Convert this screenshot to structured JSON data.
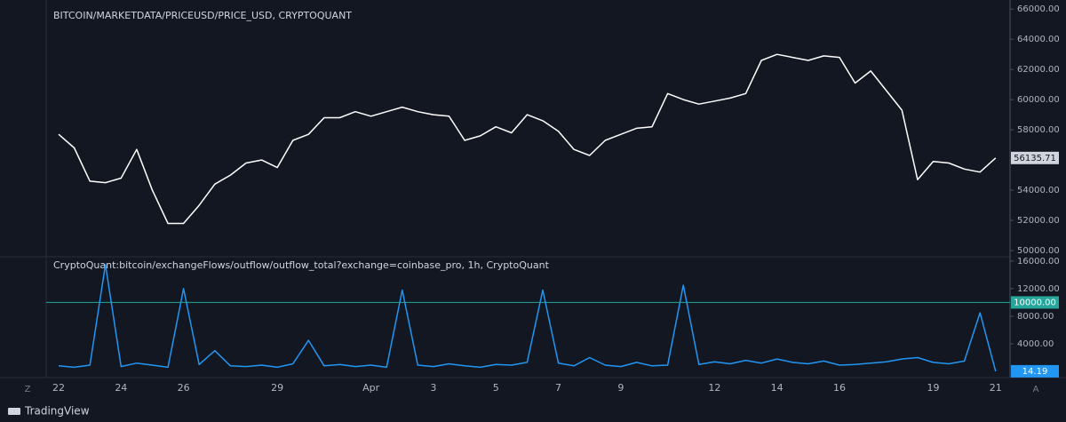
{
  "chart_data": [
    {
      "type": "line",
      "title": "BITCOIN/MARKETDATA/PRICEUSD/PRICE_USD, CRYPTOQUANT",
      "categories": [
        "22",
        null,
        null,
        null,
        "24",
        null,
        null,
        null,
        "26",
        null,
        null,
        null,
        null,
        null,
        "29",
        null,
        null,
        null,
        null,
        null,
        "Apr",
        null,
        null,
        null,
        "3",
        null,
        null,
        null,
        "5",
        null,
        null,
        null,
        "7",
        null,
        null,
        null,
        "9",
        null,
        null,
        null,
        null,
        null,
        "12",
        null,
        null,
        null,
        "14",
        null,
        null,
        null,
        "16",
        null,
        null,
        null,
        null,
        null,
        "19",
        null,
        null,
        null,
        "21"
      ],
      "series": [
        {
          "name": "PRICE_USD",
          "color": "#ffffff",
          "values": [
            57700,
            56800,
            54600,
            54500,
            54800,
            56700,
            54000,
            51800,
            51800,
            53000,
            54400,
            55000,
            55800,
            56000,
            55500,
            57300,
            57700,
            58800,
            58800,
            59200,
            58900,
            59200,
            59500,
            59200,
            59000,
            58900,
            57300,
            57600,
            58200,
            57800,
            59000,
            58600,
            57900,
            56700,
            56300,
            57300,
            57700,
            58100,
            58200,
            60400,
            60000,
            59700,
            59900,
            60100,
            60400,
            62600,
            63000,
            62800,
            62600,
            62900,
            62800,
            61100,
            61900,
            60600,
            59300,
            54700,
            55900,
            55800,
            55400,
            55200,
            56135.71
          ]
        }
      ],
      "ylim": [
        49650,
        66600
      ],
      "yticks": [
        {
          "value": 50000,
          "label": "50000.00"
        },
        {
          "value": 52000,
          "label": "52000.00"
        },
        {
          "value": 54000,
          "label": "54000.00"
        },
        {
          "value": 56000,
          "label": "56000.00"
        },
        {
          "value": 58000,
          "label": "58000.00"
        },
        {
          "value": 60000,
          "label": "60000.00"
        },
        {
          "value": 62000,
          "label": "62000.00"
        },
        {
          "value": 64000,
          "label": "64000.00"
        },
        {
          "value": 66000,
          "label": "66000.00"
        }
      ],
      "grid": false
    },
    {
      "type": "line",
      "title": "CryptoQuant:bitcoin/exchangeFlows/outflow/outflow_total?exchange=coinbase_pro, 1h, CryptoQuant",
      "series": [
        {
          "name": "outflow_total",
          "color": "#2196f3",
          "values": [
            800,
            600,
            900,
            15500,
            700,
            1200,
            900,
            600,
            12000,
            1000,
            3000,
            800,
            700,
            900,
            600,
            1100,
            4500,
            800,
            1000,
            700,
            900,
            600,
            11800,
            900,
            700,
            1100,
            800,
            600,
            1000,
            900,
            1300,
            11800,
            1200,
            800,
            2000,
            900,
            700,
            1300,
            800,
            900,
            12500,
            1000,
            1400,
            1100,
            1600,
            1200,
            1800,
            1300,
            1100,
            1500,
            900,
            1000,
            1200,
            1400,
            1800,
            2000,
            1300,
            1100,
            1500,
            8500,
            14.19
          ]
        }
      ],
      "ylim": [
        -900,
        16500
      ],
      "yticks": [
        {
          "value": 4000,
          "label": "4000.00"
        },
        {
          "value": 8000,
          "label": "8000.00"
        },
        {
          "value": 12000,
          "label": "12000.00"
        },
        {
          "value": 16000,
          "label": "16000.00"
        }
      ],
      "hlines": [
        {
          "value": 10000,
          "label": "10000.00",
          "color": "#26a69a"
        }
      ],
      "grid": false
    }
  ],
  "ui": {
    "brand": "TradingView",
    "left_button": "Z",
    "right_button": "A"
  }
}
